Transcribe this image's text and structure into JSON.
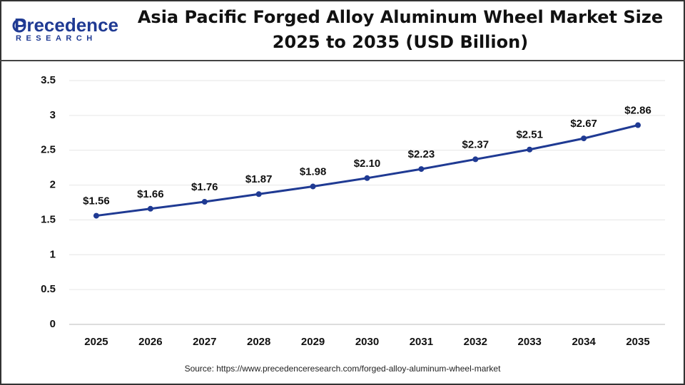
{
  "logo": {
    "name": "Precedence",
    "tagline": "RESEARCH"
  },
  "chart_data": {
    "type": "line",
    "title": [
      "Asia Pacific Forged Alloy Aluminum Wheel Market Size",
      "2025 to 2035 (USD Billion)"
    ],
    "categories": [
      "2025",
      "2026",
      "2027",
      "2028",
      "2029",
      "2030",
      "2031",
      "2032",
      "2033",
      "2034",
      "2035"
    ],
    "values": [
      1.56,
      1.66,
      1.76,
      1.87,
      1.98,
      2.1,
      2.23,
      2.37,
      2.51,
      2.67,
      2.86
    ],
    "value_labels": [
      "$1.56",
      "$1.66",
      "$1.76",
      "$1.87",
      "$1.98",
      "$2.10",
      "$2.23",
      "$2.37",
      "$2.51",
      "$2.67",
      "$2.86"
    ],
    "color": "#1f3a93",
    "ylim": [
      0,
      3.5
    ],
    "yticks": [
      0,
      0.5,
      1,
      1.5,
      2,
      2.5,
      3,
      3.5
    ],
    "grid": true,
    "source": "Source: https://www.precedenceresearch.com/forged-alloy-aluminum-wheel-market"
  }
}
